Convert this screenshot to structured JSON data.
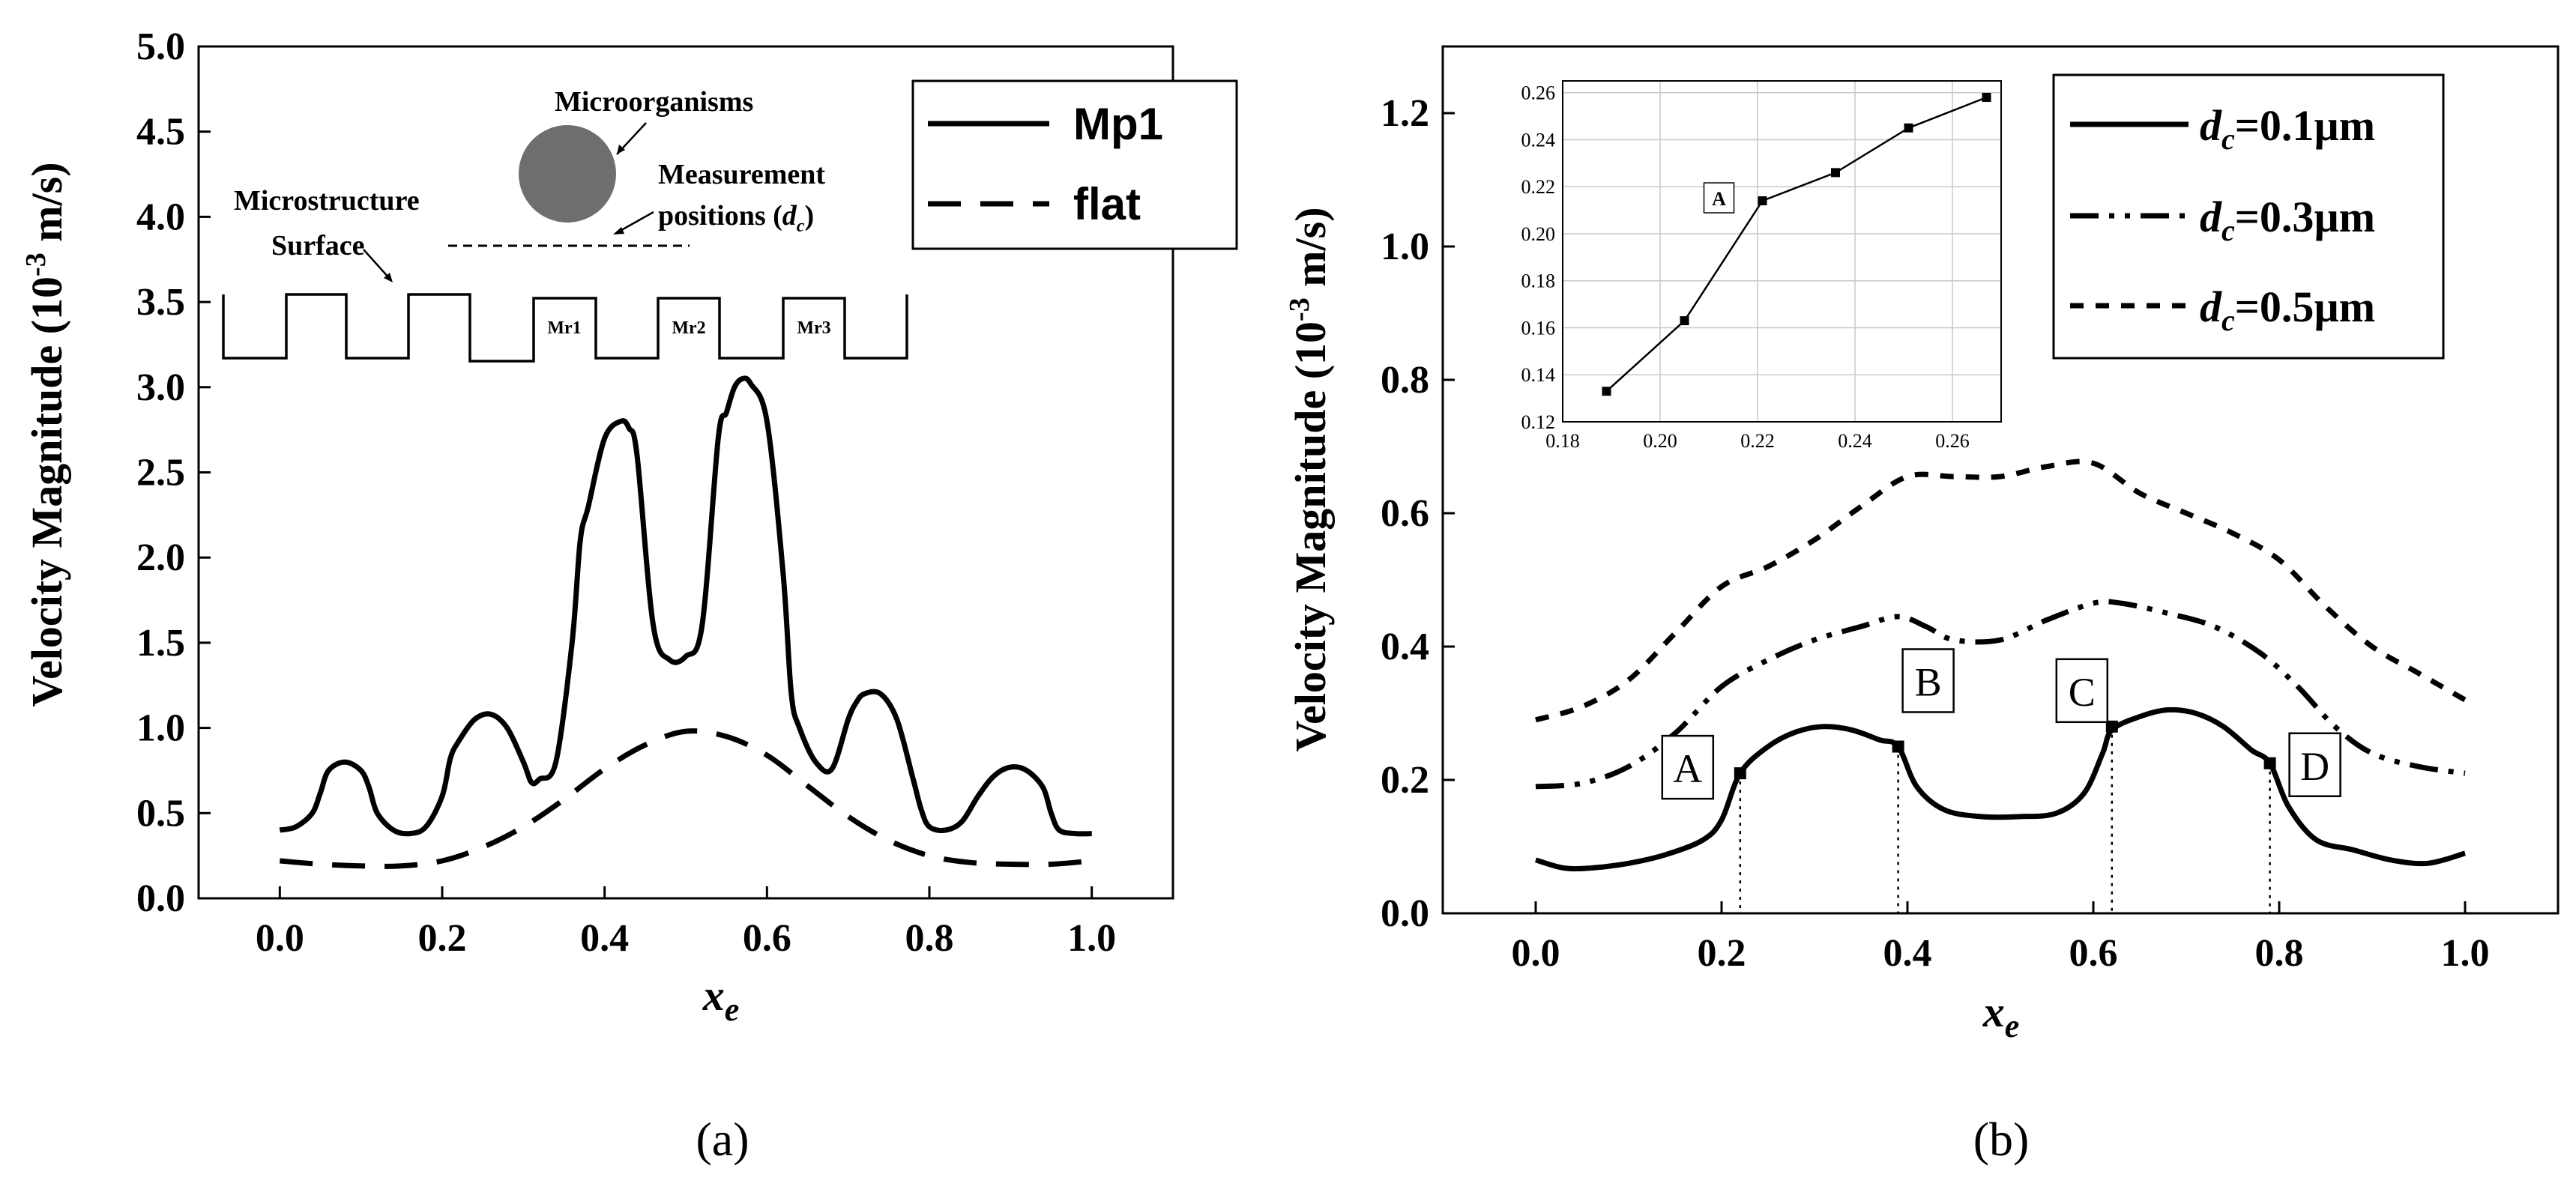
{
  "chart_data": [
    {
      "panel": "(a)",
      "type": "line",
      "xlabel_main": "x",
      "xlabel_sub": "e",
      "ylabel": "Velocity Magnitude (10",
      "ylabel_exp": "-3",
      "ylabel_unit": " m/s)",
      "xlim": [
        -0.1,
        1.1
      ],
      "ylim": [
        0,
        5.0
      ],
      "xticks": [
        0.0,
        0.2,
        0.4,
        0.6,
        0.8,
        1.0
      ],
      "xtick_labels": [
        "0.0",
        "0.2",
        "0.4",
        "0.6",
        "0.8",
        "1.0"
      ],
      "yticks": [
        0,
        0.5,
        1.0,
        1.5,
        2.0,
        2.5,
        3.0,
        3.5,
        4.0,
        4.5,
        5.0
      ],
      "ytick_labels": [
        "0.0",
        "0.5",
        "1.0",
        "1.5",
        "2.0",
        "2.5",
        "3.0",
        "3.5",
        "4.0",
        "4.5",
        "5.0"
      ],
      "series": [
        {
          "name": "Mp1",
          "style": "solid",
          "x": [
            0.0,
            0.02,
            0.04,
            0.05,
            0.06,
            0.08,
            0.1,
            0.11,
            0.12,
            0.14,
            0.16,
            0.18,
            0.2,
            0.21,
            0.22,
            0.24,
            0.26,
            0.28,
            0.3,
            0.31,
            0.32,
            0.34,
            0.36,
            0.37,
            0.38,
            0.4,
            0.42,
            0.43,
            0.44,
            0.46,
            0.48,
            0.5,
            0.52,
            0.54,
            0.55,
            0.56,
            0.57,
            0.58,
            0.6,
            0.62,
            0.63,
            0.64,
            0.66,
            0.68,
            0.7,
            0.71,
            0.72,
            0.74,
            0.76,
            0.78,
            0.79,
            0.8,
            0.82,
            0.84,
            0.86,
            0.88,
            0.9,
            0.92,
            0.94,
            0.95,
            0.96,
            0.98,
            1.0
          ],
          "y": [
            0.4,
            0.42,
            0.5,
            0.62,
            0.75,
            0.8,
            0.75,
            0.65,
            0.5,
            0.4,
            0.38,
            0.42,
            0.6,
            0.82,
            0.92,
            1.05,
            1.08,
            1.0,
            0.8,
            0.68,
            0.7,
            0.8,
            1.5,
            2.1,
            2.3,
            2.7,
            2.8,
            2.76,
            2.6,
            1.6,
            1.4,
            1.42,
            1.6,
            2.7,
            2.85,
            3.0,
            3.05,
            3.02,
            2.8,
            1.9,
            1.2,
            1.0,
            0.8,
            0.76,
            1.05,
            1.15,
            1.2,
            1.2,
            1.05,
            0.7,
            0.52,
            0.42,
            0.4,
            0.45,
            0.6,
            0.72,
            0.77,
            0.75,
            0.65,
            0.5,
            0.4,
            0.38,
            0.38
          ]
        },
        {
          "name": "flat",
          "style": "dashed",
          "x": [
            0.0,
            0.05,
            0.1,
            0.15,
            0.2,
            0.25,
            0.3,
            0.35,
            0.4,
            0.45,
            0.5,
            0.55,
            0.6,
            0.65,
            0.7,
            0.75,
            0.8,
            0.85,
            0.9,
            0.95,
            1.0
          ],
          "y": [
            0.22,
            0.2,
            0.19,
            0.19,
            0.22,
            0.3,
            0.42,
            0.58,
            0.76,
            0.9,
            0.98,
            0.95,
            0.84,
            0.66,
            0.48,
            0.34,
            0.25,
            0.21,
            0.2,
            0.2,
            0.22
          ]
        }
      ],
      "legend": [
        "Mp1",
        "flat"
      ],
      "schematic": {
        "microorganisms_label": "Microorganisms",
        "measurement_label_1": "Measurement",
        "measurement_label_2": "positions (",
        "measurement_label_d": "d",
        "measurement_label_sub": "c",
        "measurement_label_end": ")",
        "surface_label_1": "Microstructure",
        "surface_label_2": "Surface",
        "blocks": [
          "Mr1",
          "Mr2",
          "Mr3"
        ]
      },
      "caption": "(a)"
    },
    {
      "panel": "(b)",
      "type": "line",
      "xlabel_main": "x",
      "xlabel_sub": "e",
      "ylabel": "Velocity Magnitude (10",
      "ylabel_exp": "-3",
      "ylabel_unit": " m/s)",
      "xlim": [
        -0.1,
        1.1
      ],
      "ylim": [
        0,
        1.3
      ],
      "xticks": [
        0.0,
        0.2,
        0.4,
        0.6,
        0.8,
        1.0
      ],
      "xtick_labels": [
        "0.0",
        "0.2",
        "0.4",
        "0.6",
        "0.8",
        "1.0"
      ],
      "yticks": [
        0.0,
        0.2,
        0.4,
        0.6,
        0.8,
        1.0,
        1.2
      ],
      "ytick_labels": [
        "0.0",
        "0.2",
        "0.4",
        "0.6",
        "0.8",
        "1.0",
        "1.2"
      ],
      "series": [
        {
          "name": "d_c=0.1µm",
          "legend_value": "=0.1µm",
          "style": "solid",
          "x": [
            0.0,
            0.03,
            0.06,
            0.1,
            0.14,
            0.18,
            0.2,
            0.22,
            0.25,
            0.28,
            0.31,
            0.34,
            0.37,
            0.39,
            0.41,
            0.44,
            0.48,
            0.52,
            0.56,
            0.59,
            0.61,
            0.62,
            0.65,
            0.68,
            0.71,
            0.74,
            0.77,
            0.79,
            0.81,
            0.84,
            0.88,
            0.92,
            0.96,
            1.0
          ],
          "y": [
            0.08,
            0.068,
            0.068,
            0.075,
            0.088,
            0.11,
            0.14,
            0.21,
            0.25,
            0.272,
            0.28,
            0.275,
            0.26,
            0.25,
            0.19,
            0.155,
            0.145,
            0.145,
            0.15,
            0.18,
            0.24,
            0.275,
            0.295,
            0.305,
            0.3,
            0.28,
            0.245,
            0.225,
            0.16,
            0.11,
            0.095,
            0.08,
            0.075,
            0.09
          ]
        },
        {
          "name": "d_c=0.3µm",
          "legend_value": "=0.3µm",
          "style": "dash-dot-dot",
          "x": [
            0.0,
            0.05,
            0.1,
            0.15,
            0.2,
            0.25,
            0.3,
            0.35,
            0.39,
            0.42,
            0.45,
            0.5,
            0.55,
            0.6,
            0.63,
            0.68,
            0.73,
            0.78,
            0.82,
            0.86,
            0.9,
            0.95,
            1.0
          ],
          "y": [
            0.19,
            0.195,
            0.22,
            0.27,
            0.34,
            0.38,
            0.41,
            0.43,
            0.445,
            0.43,
            0.41,
            0.41,
            0.44,
            0.465,
            0.465,
            0.45,
            0.43,
            0.39,
            0.34,
            0.28,
            0.24,
            0.22,
            0.21
          ]
        },
        {
          "name": "d_c=0.5µm",
          "legend_value": "=0.5µm",
          "style": "dotted",
          "x": [
            0.0,
            0.05,
            0.1,
            0.15,
            0.2,
            0.25,
            0.3,
            0.35,
            0.4,
            0.45,
            0.5,
            0.55,
            0.6,
            0.65,
            0.7,
            0.75,
            0.8,
            0.85,
            0.9,
            0.95,
            1.0
          ],
          "y": [
            0.29,
            0.31,
            0.35,
            0.42,
            0.49,
            0.52,
            0.56,
            0.61,
            0.655,
            0.655,
            0.655,
            0.67,
            0.675,
            0.63,
            0.6,
            0.57,
            0.53,
            0.46,
            0.4,
            0.36,
            0.32
          ]
        }
      ],
      "legend_prefix": "d",
      "legend_sub": "c",
      "markers": [
        {
          "label": "A",
          "x": 0.22,
          "y": 0.21
        },
        {
          "label": "B",
          "x": 0.39,
          "y": 0.25
        },
        {
          "label": "C",
          "x": 0.62,
          "y": 0.28
        },
        {
          "label": "D",
          "x": 0.79,
          "y": 0.225
        }
      ],
      "inset": {
        "type": "line",
        "x": [
          0.189,
          0.205,
          0.221,
          0.236,
          0.251,
          0.267
        ],
        "y": [
          0.133,
          0.163,
          0.214,
          0.226,
          0.245,
          0.258
        ],
        "xlim": [
          0.18,
          0.27
        ],
        "ylim": [
          0.12,
          0.265
        ],
        "xticks": [
          0.18,
          0.2,
          0.22,
          0.24,
          0.26
        ],
        "xtick_labels": [
          "0.18",
          "0.20",
          "0.22",
          "0.24",
          "0.26"
        ],
        "yticks": [
          0.12,
          0.14,
          0.16,
          0.18,
          0.2,
          0.22,
          0.24,
          0.26
        ],
        "ytick_labels": [
          "0.12",
          "0.14",
          "0.16",
          "0.18",
          "0.20",
          "0.22",
          "0.24",
          "0.26"
        ],
        "annotation": "A",
        "annotation_x": 0.221,
        "annotation_y": 0.214
      },
      "caption": "(b)"
    }
  ],
  "colors": {
    "ink": "#000000",
    "circle": "#6e6e6e",
    "grid": "#c8c8c8"
  }
}
